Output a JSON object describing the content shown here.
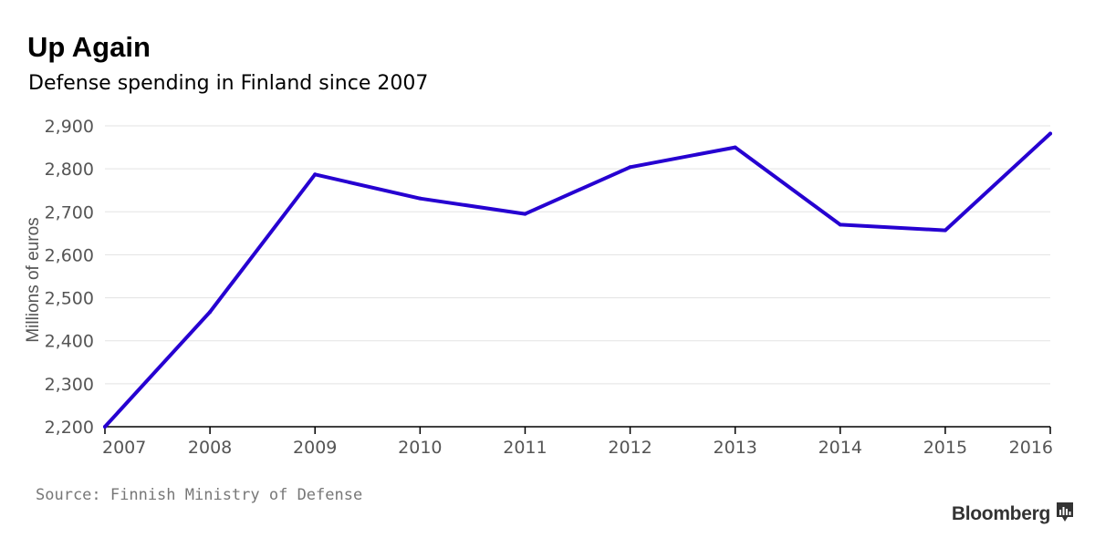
{
  "header": {
    "title": "Up Again",
    "subtitle": "Defense spending in Finland since 2007"
  },
  "footer": {
    "source": "Source: Finnish Ministry of Defense",
    "brand": "Bloomberg",
    "brand_icon": "bloomberg-chart-icon"
  },
  "colors": {
    "line": "#2600d1",
    "grid": "#e3e3e3",
    "axis": "#000000",
    "tick_text": "#555555",
    "source_text": "#777777"
  },
  "chart_data": {
    "type": "line",
    "title": "Up Again",
    "subtitle": "Defense spending in Finland since 2007",
    "xlabel": "",
    "ylabel": "Millions of euros",
    "x": [
      2007,
      2008,
      2009,
      2010,
      2011,
      2012,
      2013,
      2014,
      2015,
      2016
    ],
    "series": [
      {
        "values": [
          2200,
          2467,
          2787,
          2731,
          2695,
          2804,
          2850,
          2670,
          2657,
          2882
        ]
      }
    ],
    "xlim": [
      2007,
      2016
    ],
    "ylim": [
      2200,
      2900
    ],
    "yticks": [
      2200,
      2300,
      2400,
      2500,
      2600,
      2700,
      2800,
      2900
    ],
    "ytick_labels": [
      "2,200",
      "2,300",
      "2,400",
      "2,500",
      "2,600",
      "2,700",
      "2,800",
      "2,900"
    ],
    "xtick_labels": [
      "2007",
      "2008",
      "2009",
      "2010",
      "2011",
      "2012",
      "2013",
      "2014",
      "2015",
      "2016"
    ],
    "grid": true,
    "legend": "none"
  }
}
